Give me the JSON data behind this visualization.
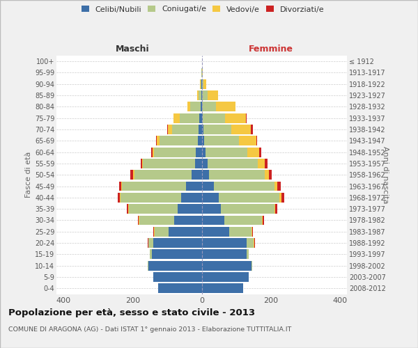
{
  "age_groups": [
    "0-4",
    "5-9",
    "10-14",
    "15-19",
    "20-24",
    "25-29",
    "30-34",
    "35-39",
    "40-44",
    "45-49",
    "50-54",
    "55-59",
    "60-64",
    "65-69",
    "70-74",
    "75-79",
    "80-84",
    "85-89",
    "90-94",
    "95-99",
    "100+"
  ],
  "birth_years": [
    "2008-2012",
    "2003-2007",
    "1998-2002",
    "1993-1997",
    "1988-1992",
    "1983-1987",
    "1978-1982",
    "1973-1977",
    "1968-1972",
    "1963-1967",
    "1958-1962",
    "1953-1957",
    "1948-1952",
    "1943-1947",
    "1938-1942",
    "1933-1937",
    "1928-1932",
    "1923-1927",
    "1918-1922",
    "1913-1917",
    "≤ 1912"
  ],
  "maschi": {
    "celibi": [
      125,
      140,
      155,
      145,
      140,
      95,
      80,
      70,
      60,
      45,
      30,
      20,
      18,
      12,
      10,
      8,
      4,
      2,
      1,
      0,
      0
    ],
    "coniugati": [
      0,
      0,
      2,
      5,
      15,
      40,
      100,
      140,
      175,
      185,
      165,
      150,
      120,
      110,
      75,
      55,
      30,
      8,
      3,
      1,
      0
    ],
    "vedovi": [
      0,
      0,
      0,
      0,
      0,
      2,
      2,
      2,
      2,
      3,
      3,
      3,
      5,
      8,
      12,
      18,
      8,
      3,
      1,
      0,
      0
    ],
    "divorziati": [
      0,
      0,
      0,
      0,
      2,
      2,
      3,
      4,
      5,
      5,
      8,
      4,
      3,
      2,
      3,
      1,
      0,
      0,
      0,
      0,
      0
    ]
  },
  "femmine": {
    "nubili": [
      120,
      135,
      145,
      130,
      130,
      80,
      65,
      55,
      50,
      35,
      22,
      18,
      12,
      8,
      5,
      3,
      2,
      2,
      1,
      0,
      0
    ],
    "coniugate": [
      0,
      0,
      2,
      5,
      20,
      65,
      110,
      155,
      175,
      175,
      160,
      145,
      120,
      100,
      80,
      65,
      40,
      15,
      4,
      1,
      0
    ],
    "vedove": [
      0,
      0,
      0,
      0,
      2,
      2,
      2,
      3,
      5,
      8,
      12,
      20,
      35,
      50,
      58,
      60,
      55,
      30,
      8,
      2,
      0
    ],
    "divorziate": [
      0,
      0,
      0,
      0,
      2,
      2,
      3,
      5,
      8,
      10,
      8,
      8,
      5,
      3,
      5,
      2,
      0,
      0,
      0,
      0,
      0
    ]
  },
  "colors": {
    "celibi_nubili": "#3d6fa8",
    "coniugati": "#b5c98a",
    "vedovi": "#f5c842",
    "divorziati": "#cc2222"
  },
  "xlim": 420,
  "title": "Popolazione per età, sesso e stato civile - 2013",
  "subtitle": "COMUNE DI ARAGONA (AG) - Dati ISTAT 1° gennaio 2013 - Elaborazione TUTTITALIA.IT",
  "ylabel_left": "Fasce di età",
  "ylabel_right": "Anni di nascita",
  "xlabel_maschi": "Maschi",
  "xlabel_femmine": "Femmine",
  "bg_color": "#f0f0f0",
  "plot_bg": "#ffffff",
  "legend_labels": [
    "Celibi/Nubili",
    "Coniugati/e",
    "Vedovi/e",
    "Divorziati/e"
  ]
}
